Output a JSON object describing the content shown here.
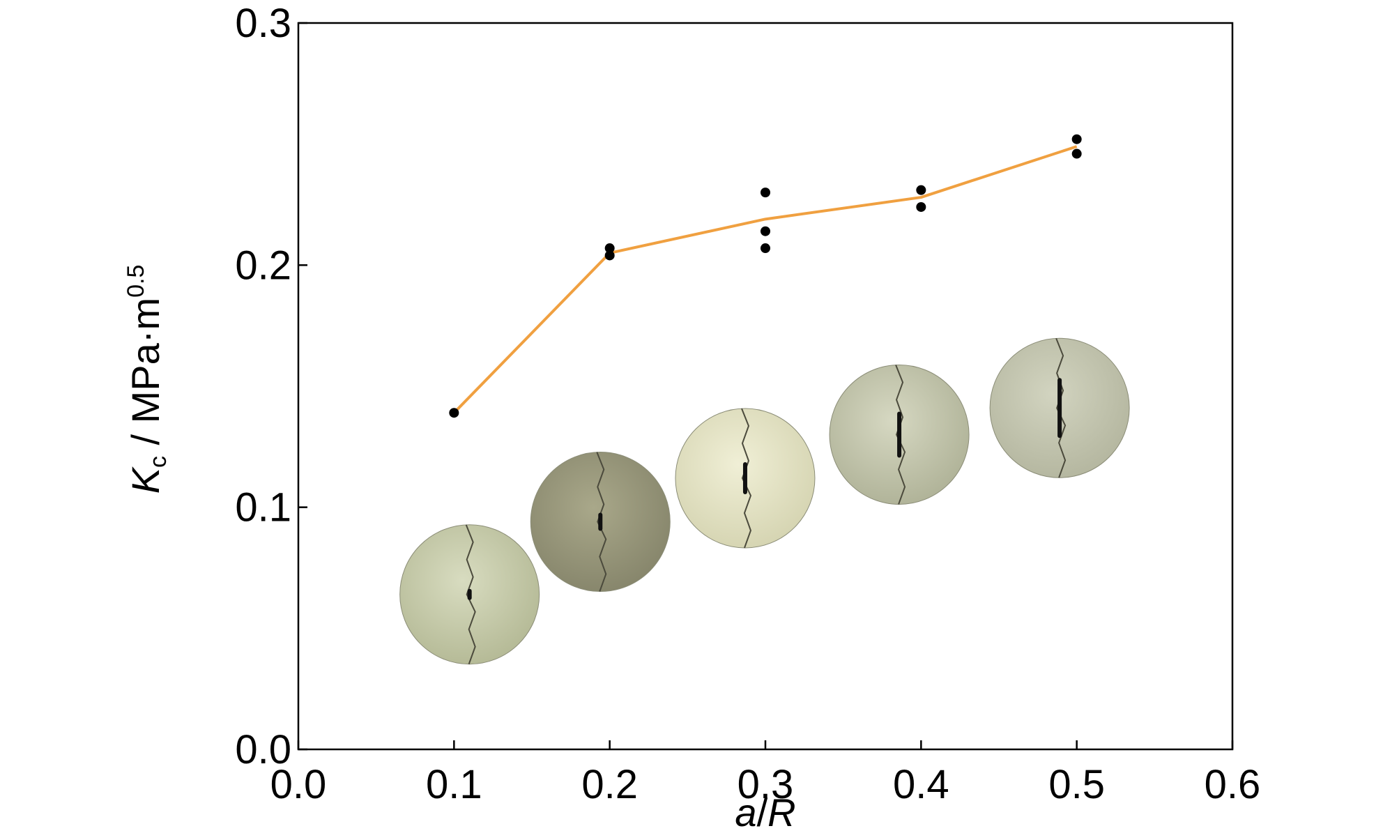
{
  "colors": {
    "mean_line": "#f0a040",
    "points": "#000000",
    "axes": "#000000"
  },
  "axes": {
    "x_ticks": [
      "0.0",
      "0.1",
      "0.2",
      "0.3",
      "0.4",
      "0.5",
      "0.6"
    ],
    "y_ticks": [
      "0.0",
      "0.1",
      "0.2",
      "0.3"
    ],
    "xlabel_italic": "a",
    "xlabel_sep": "/",
    "xlabel_R": "R",
    "ylabel_K": "K",
    "ylabel_sub": "c",
    "ylabel_unit": " / MPa·m",
    "ylabel_sup": "0.5"
  },
  "chart_data": {
    "type": "scatter",
    "title": "",
    "xlabel": "a/R",
    "ylabel": "Kc / MPa·m0.5",
    "xlim": [
      0.0,
      0.6
    ],
    "ylim": [
      0.0,
      0.3
    ],
    "grid": false,
    "series": [
      {
        "kind": "scatter",
        "x": [
          0.1,
          0.2,
          0.2,
          0.3,
          0.3,
          0.3,
          0.4,
          0.4,
          0.5,
          0.5
        ],
        "y": [
          0.139,
          0.207,
          0.204,
          0.23,
          0.214,
          0.207,
          0.231,
          0.224,
          0.252,
          0.246
        ]
      },
      {
        "kind": "line",
        "x": [
          0.1,
          0.2,
          0.3,
          0.4,
          0.5
        ],
        "y": [
          0.139,
          0.205,
          0.219,
          0.228,
          0.249
        ]
      }
    ],
    "inset_images": [
      {
        "x": 0.11,
        "y": 0.064,
        "crack": 0.05
      },
      {
        "x": 0.194,
        "y": 0.094,
        "crack": 0.1
      },
      {
        "x": 0.287,
        "y": 0.112,
        "crack": 0.2
      },
      {
        "x": 0.386,
        "y": 0.13,
        "crack": 0.3
      },
      {
        "x": 0.489,
        "y": 0.141,
        "crack": 0.4
      }
    ]
  }
}
